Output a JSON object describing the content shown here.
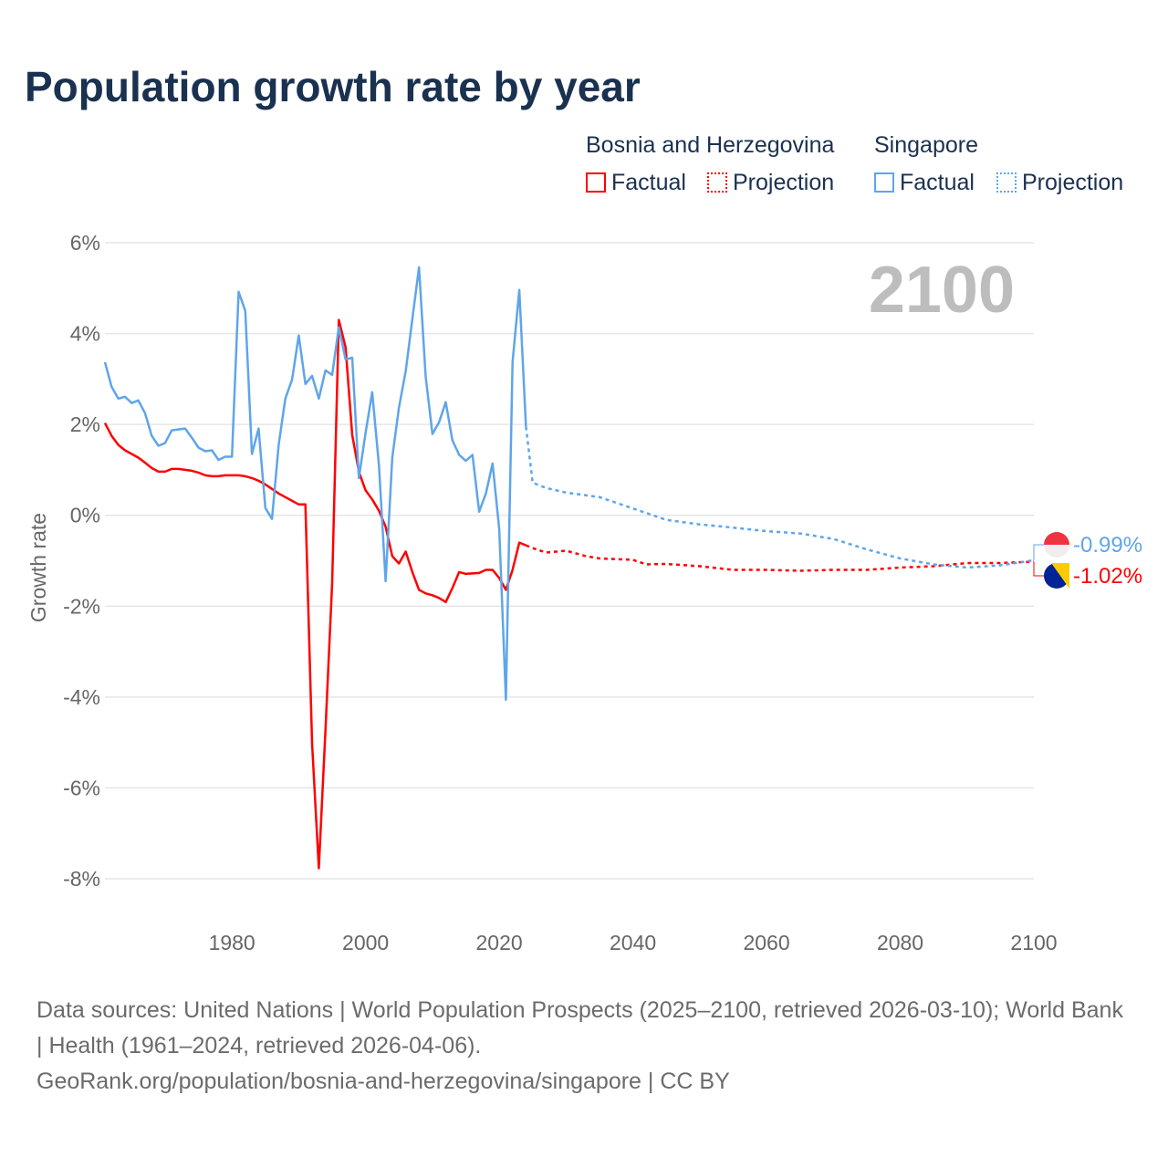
{
  "title": "Population growth rate by year",
  "legend": {
    "groups": [
      {
        "country": "Bosnia and Herzegovina",
        "factual": "Factual",
        "projection": "Projection",
        "color": "#ff0000"
      },
      {
        "country": "Singapore",
        "factual": "Factual",
        "projection": "Projection",
        "color": "#5fa5ea"
      }
    ]
  },
  "year_watermark": "2100",
  "end_labels": {
    "singapore": "-0.99%",
    "bosnia": "-1.02%"
  },
  "footer": {
    "sources": "Data sources: United Nations | World Population Prospects (2025–2100, retrieved 2026-03-10); World Bank | Health (1961–2024, retrieved 2026-04-06).",
    "url": "GeoRank.org/population/bosnia-and-herzegovina/singapore | CC BY"
  },
  "chart_data": {
    "type": "line",
    "title": "Population growth rate by year",
    "xlabel": "",
    "ylabel": "Growth rate",
    "xlim": [
      1961,
      2100
    ],
    "ylim": [
      -8,
      6
    ],
    "xticks": [
      "1980",
      "2000",
      "2020",
      "2040",
      "2060",
      "2080",
      "2100"
    ],
    "xtick_values": [
      1980,
      2000,
      2020,
      2040,
      2060,
      2080,
      2100
    ],
    "yticks": [
      "6%",
      "4%",
      "2%",
      "0%",
      "-2%",
      "-4%",
      "-6%",
      "-8%"
    ],
    "ytick_values": [
      6,
      4,
      2,
      0,
      -2,
      -4,
      -6,
      -8
    ],
    "grid": true,
    "series": [
      {
        "name": "Bosnia and Herzegovina Factual",
        "color": "#ff0000",
        "dashed": false,
        "x": [
          1961,
          1962,
          1963,
          1964,
          1965,
          1966,
          1967,
          1968,
          1969,
          1970,
          1971,
          1972,
          1973,
          1974,
          1975,
          1976,
          1977,
          1978,
          1979,
          1980,
          1981,
          1982,
          1983,
          1984,
          1985,
          1986,
          1987,
          1988,
          1989,
          1990,
          1991,
          1992,
          1993,
          1994,
          1995,
          1996,
          1997,
          1998,
          1999,
          2000,
          2001,
          2002,
          2003,
          2004,
          2005,
          2006,
          2007,
          2008,
          2009,
          2010,
          2011,
          2012,
          2013,
          2014,
          2015,
          2016,
          2017,
          2018,
          2019,
          2020,
          2021,
          2022,
          2023,
          2024
        ],
        "y": [
          2.03,
          1.75,
          1.55,
          1.43,
          1.35,
          1.27,
          1.16,
          1.04,
          0.96,
          0.96,
          1.02,
          1.02,
          1.0,
          0.98,
          0.94,
          0.88,
          0.86,
          0.86,
          0.88,
          0.88,
          0.88,
          0.86,
          0.82,
          0.76,
          0.68,
          0.58,
          0.48,
          0.4,
          0.32,
          0.24,
          0.24,
          -5.02,
          -7.77,
          -4.72,
          -1.5,
          4.3,
          3.7,
          1.77,
          0.96,
          0.55,
          0.35,
          0.1,
          -0.25,
          -0.9,
          -1.06,
          -0.8,
          -1.25,
          -1.64,
          -1.72,
          -1.76,
          -1.82,
          -1.91,
          -1.6,
          -1.25,
          -1.29,
          -1.28,
          -1.27,
          -1.2,
          -1.2,
          -1.38,
          -1.64,
          -1.2,
          -0.6,
          -0.66
        ]
      },
      {
        "name": "Bosnia and Herzegovina Projection",
        "color": "#ff0000",
        "dashed": true,
        "x": [
          2024,
          2025,
          2027,
          2030,
          2033,
          2035,
          2040,
          2042,
          2045,
          2050,
          2055,
          2060,
          2065,
          2070,
          2075,
          2080,
          2085,
          2090,
          2095,
          2100
        ],
        "y": [
          -0.66,
          -0.72,
          -0.82,
          -0.78,
          -0.9,
          -0.95,
          -0.98,
          -1.08,
          -1.07,
          -1.12,
          -1.2,
          -1.2,
          -1.22,
          -1.2,
          -1.2,
          -1.15,
          -1.12,
          -1.05,
          -1.05,
          -1.02
        ]
      },
      {
        "name": "Singapore Factual",
        "color": "#5fa5ea",
        "dashed": false,
        "x": [
          1961,
          1962,
          1963,
          1964,
          1965,
          1966,
          1967,
          1968,
          1969,
          1970,
          1971,
          1972,
          1973,
          1974,
          1975,
          1976,
          1977,
          1978,
          1979,
          1980,
          1981,
          1982,
          1983,
          1984,
          1985,
          1986,
          1987,
          1988,
          1989,
          1990,
          1991,
          1992,
          1993,
          1994,
          1995,
          1996,
          1997,
          1998,
          1999,
          2000,
          2001,
          2002,
          2003,
          2004,
          2005,
          2006,
          2007,
          2008,
          2009,
          2010,
          2011,
          2012,
          2013,
          2014,
          2015,
          2016,
          2017,
          2018,
          2019,
          2020,
          2021,
          2022,
          2023,
          2024
        ],
        "y": [
          3.37,
          2.83,
          2.57,
          2.61,
          2.47,
          2.53,
          2.25,
          1.75,
          1.53,
          1.59,
          1.87,
          1.89,
          1.91,
          1.71,
          1.49,
          1.41,
          1.43,
          1.22,
          1.29,
          1.29,
          4.92,
          4.5,
          1.35,
          1.91,
          0.16,
          -0.08,
          1.55,
          2.57,
          2.99,
          3.96,
          2.89,
          3.07,
          2.57,
          3.19,
          3.09,
          4.14,
          3.43,
          3.47,
          0.82,
          1.81,
          2.71,
          1.1,
          -1.45,
          1.27,
          2.37,
          3.17,
          4.32,
          5.46,
          3.05,
          1.79,
          2.05,
          2.49,
          1.65,
          1.33,
          1.2,
          1.33,
          0.08,
          0.48,
          1.14,
          -0.3,
          -4.06,
          3.37,
          4.96,
          1.95
        ]
      },
      {
        "name": "Singapore Projection",
        "color": "#5fa5ea",
        "dashed": true,
        "x": [
          2024,
          2025,
          2027,
          2030,
          2035,
          2040,
          2045,
          2050,
          2055,
          2060,
          2065,
          2070,
          2075,
          2080,
          2085,
          2090,
          2095,
          2100
        ],
        "y": [
          1.95,
          0.72,
          0.6,
          0.5,
          0.4,
          0.15,
          -0.1,
          -0.2,
          -0.27,
          -0.35,
          -0.4,
          -0.52,
          -0.75,
          -0.95,
          -1.08,
          -1.15,
          -1.1,
          -0.99
        ]
      }
    ]
  }
}
